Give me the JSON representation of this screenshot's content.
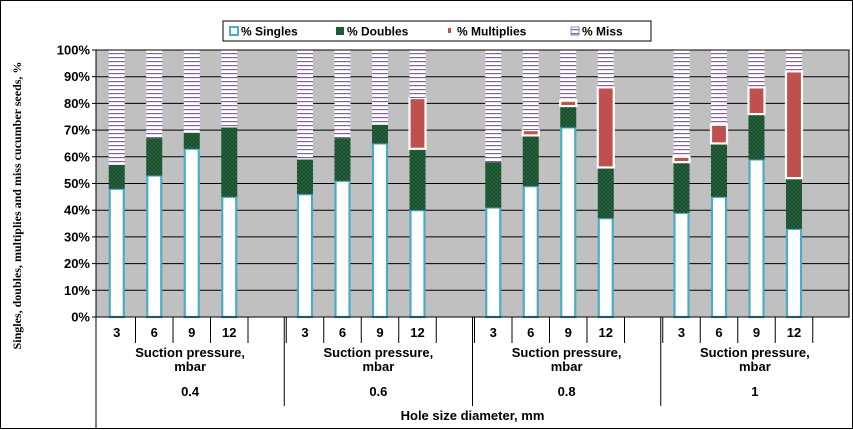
{
  "chart_data": {
    "type": "bar",
    "ylabel": "Singles, doubles, multiplies and miss cucumber seeds, %",
    "xlabel": "Hole size diameter, mm",
    "subgroup_label": "Suction pressure, mbar",
    "ylim": [
      0,
      100
    ],
    "y_ticks": [
      "0%",
      "10%",
      "20%",
      "30%",
      "40%",
      "50%",
      "60%",
      "70%",
      "80%",
      "90%",
      "100%"
    ],
    "grid": true,
    "legend_position": "top-center",
    "groups": [
      "0.4",
      "0.6",
      "0.8",
      "1"
    ],
    "pressures": [
      "3",
      "6",
      "9",
      "12"
    ],
    "categories": [
      "0.4 / 3",
      "0.4 / 6",
      "0.4 / 9",
      "0.4 / 12",
      "0.6 / 3",
      "0.6 / 6",
      "0.6 / 9",
      "0.6 / 12",
      "0.8 / 3",
      "0.8 / 6",
      "0.8 / 9",
      "0.8 / 12",
      "1 / 3",
      "1 / 6",
      "1 / 9",
      "1 / 12"
    ],
    "series": [
      {
        "name": "% Singles",
        "values": [
          48,
          53,
          63,
          45,
          46,
          51,
          65,
          40,
          41,
          49,
          71,
          37,
          39,
          45,
          59,
          33
        ]
      },
      {
        "name": "% Doubles",
        "values": [
          9,
          14,
          6,
          26,
          13,
          16,
          7,
          23,
          17,
          19,
          8,
          19,
          19,
          20,
          17,
          19
        ]
      },
      {
        "name": "% Multiplies",
        "values": [
          0,
          0,
          0,
          0,
          0,
          0,
          0,
          19,
          0,
          2,
          2,
          30,
          2,
          7,
          10,
          40
        ]
      },
      {
        "name": "% Miss",
        "values": [
          43,
          33,
          31,
          29,
          41,
          33,
          28,
          18,
          42,
          30,
          19,
          14,
          40,
          28,
          14,
          8
        ]
      }
    ]
  },
  "colors": {
    "singles": "#ffffff",
    "singles_border": "#4bacc6",
    "doubles": "#1a4d2e",
    "doubles_dot": "#49a062",
    "multiplies": "#c0504d",
    "miss": "#ffffff",
    "miss_line": "#8064a2",
    "plot_bg": "#c0c0c0",
    "grid": "#000000"
  }
}
